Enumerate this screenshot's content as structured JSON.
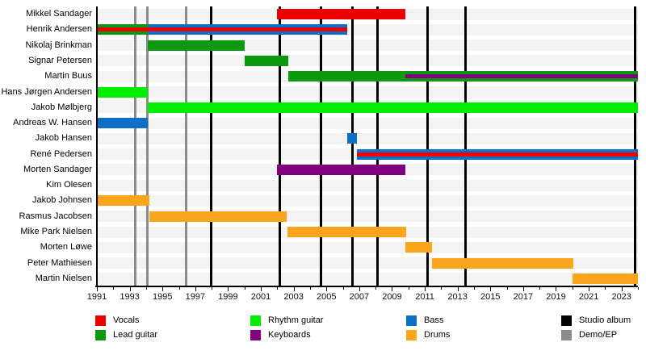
{
  "chart_data": {
    "type": "timeline",
    "title": "",
    "x_axis": {
      "min": 1991,
      "max": 2024,
      "label_start": 1991,
      "label_step": 2,
      "label_end": 2023,
      "minor_step": 1
    },
    "colors": {
      "Vocals": "#ee0000",
      "Lead guitar": "#0d990d",
      "Rhythm guitar": "#00ee00",
      "Bass": "#0d70c4",
      "Keyboards": "#800080",
      "Drums": "#fba41c",
      "Studio album": "#000000",
      "Demo/EP": "#8b8b8b"
    },
    "rows": [
      {
        "name": "Mikkel Sandager",
        "bars": [
          {
            "role": "Vocals",
            "start": 2002.0,
            "end": 2009.8
          }
        ],
        "stripes": []
      },
      {
        "name": "Henrik Andersen",
        "bars": [
          {
            "role": "Lead guitar",
            "start": 1991.0,
            "end": 1994.1
          },
          {
            "role": "Bass",
            "start": 1994.1,
            "end": 2006.27
          }
        ],
        "stripes": [
          {
            "role": "Vocals",
            "start": 1991.0,
            "end": 2006.27
          }
        ]
      },
      {
        "name": "Nikolaj Brinkman",
        "bars": [
          {
            "role": "Lead guitar",
            "start": 1994.1,
            "end": 2000.0
          }
        ],
        "stripes": []
      },
      {
        "name": "Signar Petersen",
        "bars": [
          {
            "role": "Lead guitar",
            "start": 2000.0,
            "end": 2002.65
          }
        ],
        "stripes": []
      },
      {
        "name": "Martin Buus",
        "bars": [
          {
            "role": "Lead guitar",
            "start": 2002.65,
            "end": 2024.0
          }
        ],
        "stripes": [
          {
            "role": "Keyboards",
            "start": 2009.8,
            "end": 2024.0
          }
        ]
      },
      {
        "name": "Hans Jørgen Andersen",
        "bars": [
          {
            "role": "Rhythm guitar",
            "start": 1991.0,
            "end": 1994.1
          }
        ],
        "stripes": []
      },
      {
        "name": "Jakob Mølbjerg",
        "bars": [
          {
            "role": "Rhythm guitar",
            "start": 1994.1,
            "end": 2024.0
          }
        ],
        "stripes": []
      },
      {
        "name": "Andreas W. Hansen",
        "bars": [
          {
            "role": "Bass",
            "start": 1991.0,
            "end": 1994.1
          }
        ],
        "stripes": []
      },
      {
        "name": "Jakob Hansen",
        "bars": [
          {
            "role": "Bass",
            "start": 2006.27,
            "end": 2006.86
          }
        ],
        "stripes": []
      },
      {
        "name": "René Pedersen",
        "bars": [
          {
            "role": "Bass",
            "start": 2006.86,
            "end": 2024.0
          }
        ],
        "stripes": [
          {
            "role": "Vocals",
            "start": 2006.86,
            "end": 2024.0
          }
        ]
      },
      {
        "name": "Morten Sandager",
        "bars": [
          {
            "role": "Keyboards",
            "start": 2002.0,
            "end": 2009.8
          }
        ],
        "stripes": []
      },
      {
        "name": "Kim Olesen",
        "bars": [],
        "stripes": []
      },
      {
        "name": "Jakob Johnsen",
        "bars": [
          {
            "role": "Drums",
            "start": 1991.0,
            "end": 1994.2
          }
        ],
        "stripes": []
      },
      {
        "name": "Rasmus Jacobsen",
        "bars": [
          {
            "role": "Drums",
            "start": 1994.2,
            "end": 2002.57
          }
        ],
        "stripes": []
      },
      {
        "name": "Mike Park Nielsen",
        "bars": [
          {
            "role": "Drums",
            "start": 2002.6,
            "end": 2009.85
          }
        ],
        "stripes": []
      },
      {
        "name": "Morten Løwe",
        "bars": [
          {
            "role": "Drums",
            "start": 2009.8,
            "end": 2011.44
          }
        ],
        "stripes": []
      },
      {
        "name": "Peter Mathiesen",
        "bars": [
          {
            "role": "Drums",
            "start": 2011.44,
            "end": 2020.05
          }
        ],
        "stripes": []
      },
      {
        "name": "Martin Nielsen",
        "bars": [
          {
            "role": "Drums",
            "start": 2020.0,
            "end": 2024.0
          }
        ],
        "stripes": []
      }
    ],
    "events": {
      "studio_albums": [
        1997.99,
        2002.18,
        2004.69,
        2006.61,
        2008.14,
        2011.19,
        2013.5,
        2023.84
      ],
      "demos_eps": [
        1993.36,
        1994.1,
        1996.42
      ]
    },
    "x_tick_labels": [
      "1991",
      "1993",
      "1995",
      "1997",
      "1999",
      "2001",
      "2003",
      "2005",
      "2007",
      "2009",
      "2011",
      "2013",
      "2015",
      "2017",
      "2019",
      "2021",
      "2023"
    ],
    "legend": [
      {
        "label": "Vocals",
        "role": "Vocals"
      },
      {
        "label": "Lead guitar",
        "role": "Lead guitar"
      },
      {
        "label": "Rhythm guitar",
        "role": "Rhythm guitar"
      },
      {
        "label": "Keyboards",
        "role": "Keyboards"
      },
      {
        "label": "Bass",
        "role": "Bass"
      },
      {
        "label": "Drums",
        "role": "Drums"
      },
      {
        "label": "Studio album",
        "role": "Studio album"
      },
      {
        "label": "Demo/EP",
        "role": "Demo/EP"
      }
    ]
  }
}
